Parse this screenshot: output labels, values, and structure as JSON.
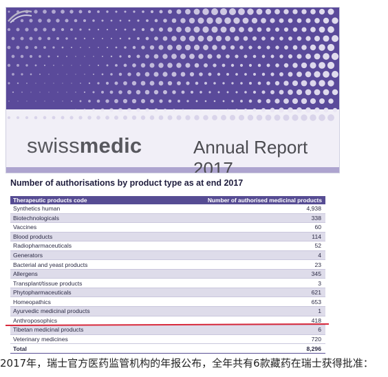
{
  "cover": {
    "brand_light": "swiss",
    "brand_bold": "medic",
    "report_title": "Annual Report 2017",
    "colors": {
      "purple": "#5a4a9a",
      "light": "#f1eff7"
    }
  },
  "table": {
    "title": "Number of authorisations by product type as at end 2017",
    "headers": [
      "Therapeutic products code",
      "Number of authorised medicinal products"
    ],
    "rows": [
      [
        "Synthetics human",
        "4,938"
      ],
      [
        "Biotechnologicals",
        "338"
      ],
      [
        "Vaccines",
        "60"
      ],
      [
        "Blood products",
        "114"
      ],
      [
        "Radiopharmaceuticals",
        "52"
      ],
      [
        "Generators",
        "4"
      ],
      [
        "Bacterial and yeast products",
        "23"
      ],
      [
        "Allergens",
        "345"
      ],
      [
        "Transplant/tissue products",
        "3"
      ],
      [
        "Phytopharmaceuticals",
        "621"
      ],
      [
        "Homeopathics",
        "653"
      ],
      [
        "Ayurvedic medicinal products",
        "1"
      ],
      [
        "Anthroposophics",
        "418"
      ],
      [
        "Tibetan medicinal products",
        "6"
      ],
      [
        "Veterinary medicines",
        "720"
      ]
    ],
    "total_label": "Total",
    "total_value": "8,296",
    "highlight_color": "#d8283a"
  },
  "caption": "2017年，瑞士官方医药监管机构的年报公布，全年共有6款藏药在瑞士获得批准："
}
